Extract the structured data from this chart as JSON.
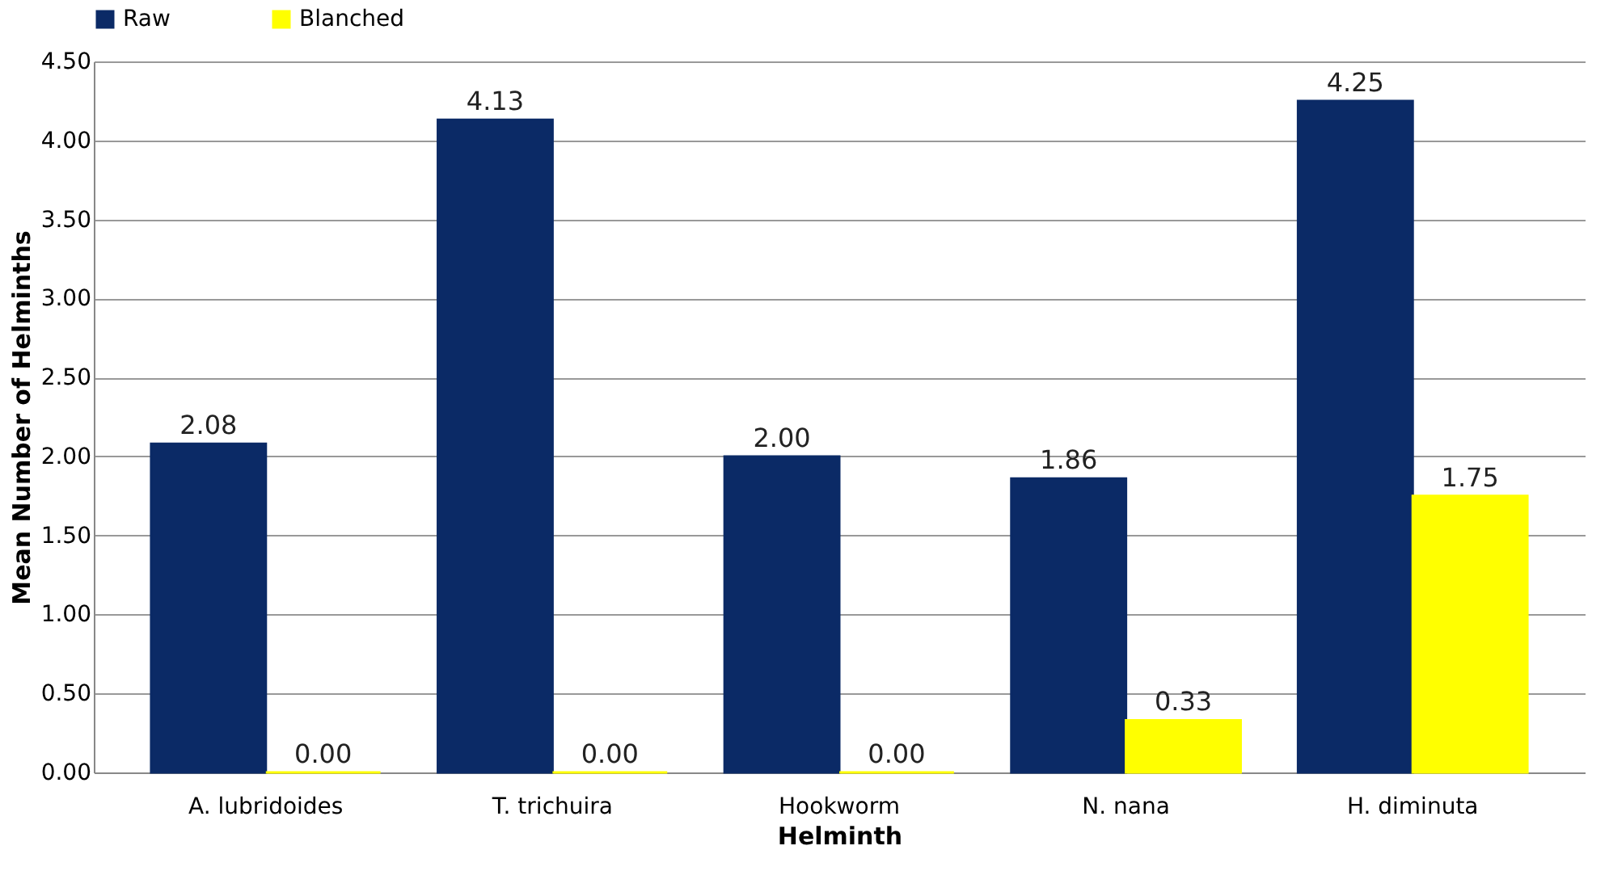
{
  "chart_data": {
    "type": "bar",
    "xlabel": "Helminth",
    "ylabel": "Mean Number of Helminths",
    "categories": [
      "A. lubridoides",
      "T. trichuira",
      "Hookworm",
      "N. nana",
      "H. diminuta"
    ],
    "series": [
      {
        "name": "Raw",
        "color": "#0b2a66",
        "values": [
          2.08,
          4.13,
          2.0,
          1.86,
          4.25
        ],
        "value_labels": [
          "2.08",
          "4.13",
          "2.00",
          "1.86",
          "4.25"
        ]
      },
      {
        "name": "Blanched",
        "color": "#ffff00",
        "values": [
          0.0,
          0.0,
          0.0,
          0.33,
          1.75
        ],
        "value_labels": [
          "0.00",
          "0.00",
          "0.00",
          "0.33",
          "1.75"
        ]
      }
    ],
    "ylim": [
      0,
      4.5
    ],
    "yticks": [
      {
        "value": 0,
        "label": "0.00"
      },
      {
        "value": 0.5,
        "label": "0.50"
      },
      {
        "value": 1,
        "label": "1.00"
      },
      {
        "value": 1.5,
        "label": "1.50"
      },
      {
        "value": 2,
        "label": "2.00"
      },
      {
        "value": 2.5,
        "label": "2.50"
      },
      {
        "value": 3,
        "label": "3.00"
      },
      {
        "value": 3.5,
        "label": "3.50"
      },
      {
        "value": 4,
        "label": "4.00"
      },
      {
        "value": 4.5,
        "label": "4.50"
      }
    ],
    "grid": "y",
    "legend": "top"
  }
}
